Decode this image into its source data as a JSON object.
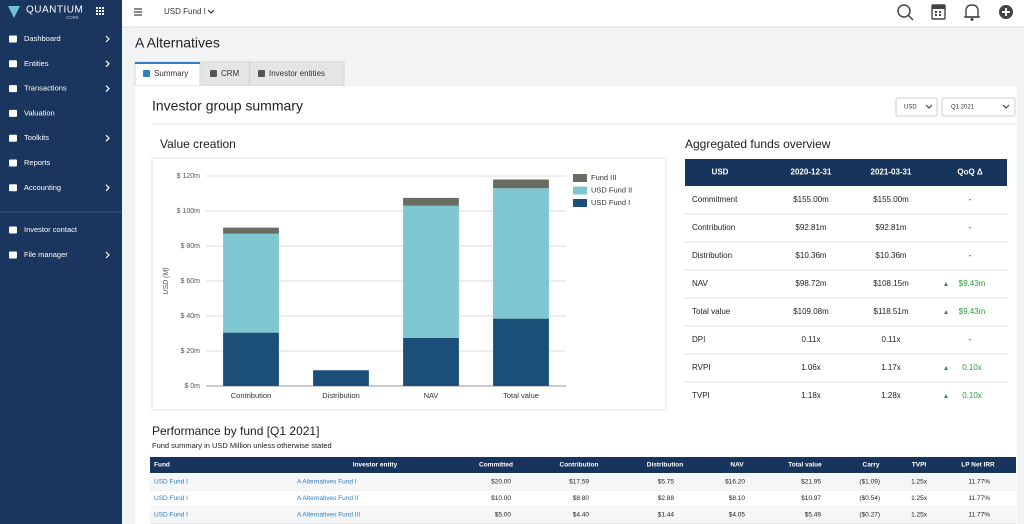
{
  "sidebar": {
    "logo": "QUANTIUM",
    "logo_sub": "CORE",
    "nav": [
      "Dashboard",
      "Entities",
      "Transactions",
      "Valuation",
      "Toolkits",
      "Reports",
      "Accounting"
    ],
    "nav_secondary": [
      "Investor contact",
      "File manager"
    ]
  },
  "topbar": {
    "fund_selector": "USD Fund I"
  },
  "page": {
    "title": "A Alternatives",
    "tabs": [
      "Summary",
      "CRM",
      "Investor entities"
    ]
  },
  "summary": {
    "title": "Investor group summary",
    "currency": "USD",
    "period": "Q1 2021"
  },
  "chart_data": {
    "type": "stacked_bar",
    "title": "Value creation",
    "ylabel": "USD (M)",
    "categories": [
      "Contribution",
      "Distribution",
      "NAV",
      "Total value"
    ],
    "series": [
      {
        "name": "USD Fund I",
        "color": "#1b4f78",
        "values": [
          30.5,
          9,
          27.5,
          38.5
        ]
      },
      {
        "name": "USD Fund II",
        "color": "#7ec7d0",
        "values": [
          56.5,
          0,
          75.5,
          74.5
        ]
      },
      {
        "name": "Fund III",
        "color": "#696c60",
        "values": [
          3.5,
          0,
          4.5,
          5
        ]
      }
    ],
    "ylim": [
      0,
      120
    ],
    "yticks": [
      {
        "value": 0,
        "label": "$ 0m"
      },
      {
        "value": 20,
        "label": "$ 20m"
      },
      {
        "value": 40,
        "label": "$ 40m"
      },
      {
        "value": 60,
        "label": "$ 60m"
      },
      {
        "value": 80,
        "label": "$ 80m"
      },
      {
        "value": 100,
        "label": "$ 100m"
      },
      {
        "value": 120,
        "label": "$ 120m"
      }
    ],
    "grid": true,
    "legend": "top-right"
  },
  "aggregated": {
    "title": "Aggregated funds overview",
    "header": [
      "USD",
      "2020-12-31",
      "2021-03-31",
      "QoQ Δ"
    ],
    "rows": [
      [
        "Commitment",
        "$155.00m",
        "$155.00m",
        "-"
      ],
      [
        "Contribution",
        "$92.81m",
        "$92.81m",
        "-"
      ],
      [
        "Distribution",
        "$10.36m",
        "$10.36m",
        "-"
      ],
      [
        "NAV",
        "$98.72m",
        "$108.15m",
        "$9.43m"
      ],
      [
        "Total value",
        "$109.08m",
        "$118.51m",
        "$9.43m"
      ],
      [
        "DPI",
        "0.11x",
        "0.11x",
        "-"
      ],
      [
        "RVPI",
        "1.06x",
        "1.17x",
        "0.10x"
      ],
      [
        "TVPI",
        "1.18x",
        "1.28x",
        "0.10x"
      ]
    ]
  },
  "performance": {
    "title": "Performance by fund [Q1 2021]",
    "subtitle": "Fund summary in USD Million unless otherwise stated",
    "header": [
      "Fund",
      "Investor entity",
      "Committed",
      "Contribution",
      "Distribution",
      "NAV",
      "Total value",
      "Carry",
      "TVPI",
      "LP Net IRR"
    ],
    "rows": [
      [
        "USD Fund I",
        "A Alternatives Fund I",
        "$20.00",
        "$17.59",
        "$5.75",
        "$16.20",
        "$21.95",
        "($1.09)",
        "1.25x",
        "11.77%"
      ],
      [
        "USD Fund I",
        "A Alternatives Fund II",
        "$10.00",
        "$8.80",
        "$2.88",
        "$8.10",
        "$10.97",
        "($0.54)",
        "1.25x",
        "11.77%"
      ],
      [
        "USD Fund I",
        "A Alternatives Fund III",
        "$5.00",
        "$4.40",
        "$1.44",
        "$4.05",
        "$5.49",
        "($0.27)",
        "1.25x",
        "11.77%"
      ]
    ]
  }
}
